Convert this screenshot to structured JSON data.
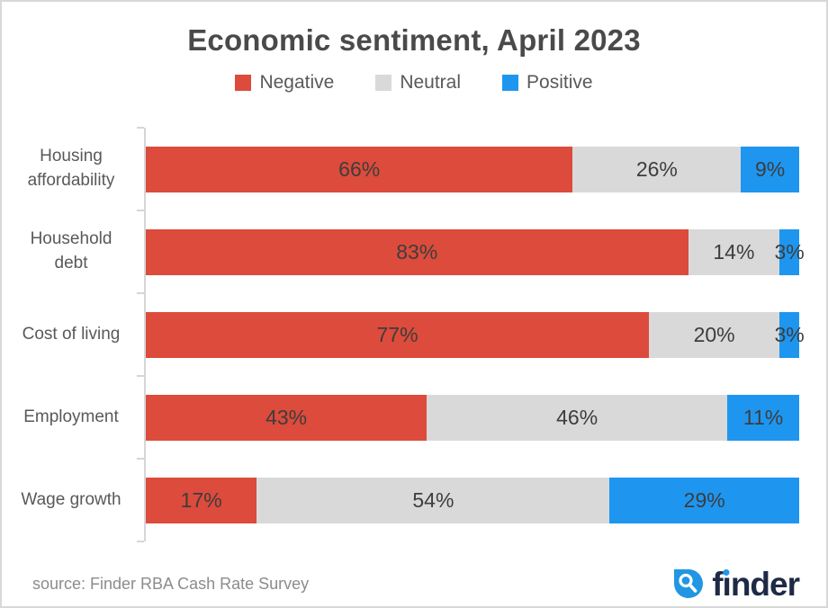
{
  "title": "Economic sentiment, April 2023",
  "chart_data": {
    "type": "bar",
    "variant": "100-percent-stacked-horizontal",
    "title": "Economic sentiment, April 2023",
    "xlabel": "",
    "ylabel": "",
    "xlim": [
      0,
      100
    ],
    "grid": false,
    "legend_position": "top",
    "value_suffix": "%",
    "categories": [
      "Housing affordability",
      "Household debt",
      "Cost of living",
      "Employment",
      "Wage growth"
    ],
    "category_labels": [
      "Housing\naffordability",
      "Household\ndebt",
      "Cost of living",
      "Employment",
      "Wage growth"
    ],
    "series": [
      {
        "name": "Negative",
        "color": "#dc4b3b",
        "values": [
          66,
          83,
          77,
          43,
          17
        ]
      },
      {
        "name": "Neutral",
        "color": "#d9d9d9",
        "values": [
          26,
          14,
          20,
          46,
          54
        ]
      },
      {
        "name": "Positive",
        "color": "#1e96f0",
        "values": [
          9,
          3,
          3,
          11,
          29
        ]
      }
    ]
  },
  "footer": {
    "source": "source: Finder RBA Cash Rate Survey",
    "brand": "finder"
  },
  "colors": {
    "negative": "#dc4b3b",
    "neutral": "#d9d9d9",
    "positive": "#1e96f0",
    "axis": "#d6d6d6",
    "brand_navy": "#1e2a45",
    "brand_blue": "#2296e3",
    "value_label": "#3d3d3d"
  }
}
